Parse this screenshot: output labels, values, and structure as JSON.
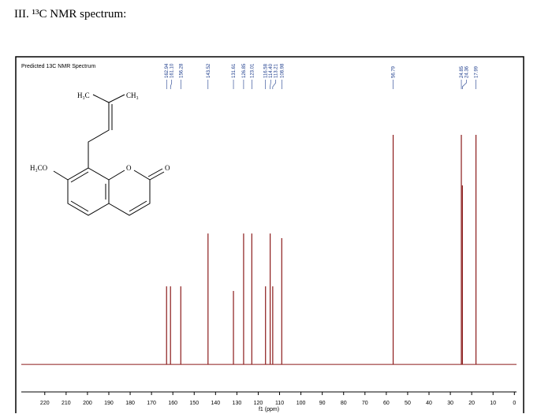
{
  "heading": "III. ¹³C NMR spectrum:",
  "structure_labels": {
    "methyl_left": "H₃C",
    "methyl_right": "CH₃",
    "methoxy": "H₃CO",
    "ring_oxygen": "O",
    "carbonyl_oxygen": "O"
  },
  "chart_data": {
    "type": "spectrum",
    "title": "Predicted 13C NMR Spectrum",
    "x_label": "f1 (ppm)",
    "x": [
      162.94,
      161.1,
      156.28,
      143.52,
      131.61,
      126.85,
      123.01,
      116.58,
      114.4,
      113.21,
      108.98,
      56.79,
      24.85,
      24.36,
      17.99
    ],
    "x_labels": [
      "162.94",
      "161.10",
      "156.28",
      "143.52",
      "131.61",
      "126.85",
      "123.01",
      "116.58",
      "114.40",
      "113.21",
      "108.98",
      "56.79",
      "24.85",
      "24.36",
      "17.99"
    ],
    "values": [
      0.34,
      0.34,
      0.34,
      0.57,
      0.32,
      0.57,
      0.57,
      0.34,
      0.57,
      0.34,
      0.55,
      1.0,
      1.0,
      0.78,
      1.0
    ],
    "color": "#8b1a1a",
    "xlim": [
      231,
      -1
    ],
    "xticks": [
      220,
      210,
      200,
      190,
      180,
      170,
      160,
      150,
      140,
      130,
      120,
      110,
      100,
      90,
      80,
      70,
      60,
      50,
      40,
      30,
      20,
      10,
      0
    ],
    "ylim": [
      -0.12,
      1.33
    ]
  }
}
